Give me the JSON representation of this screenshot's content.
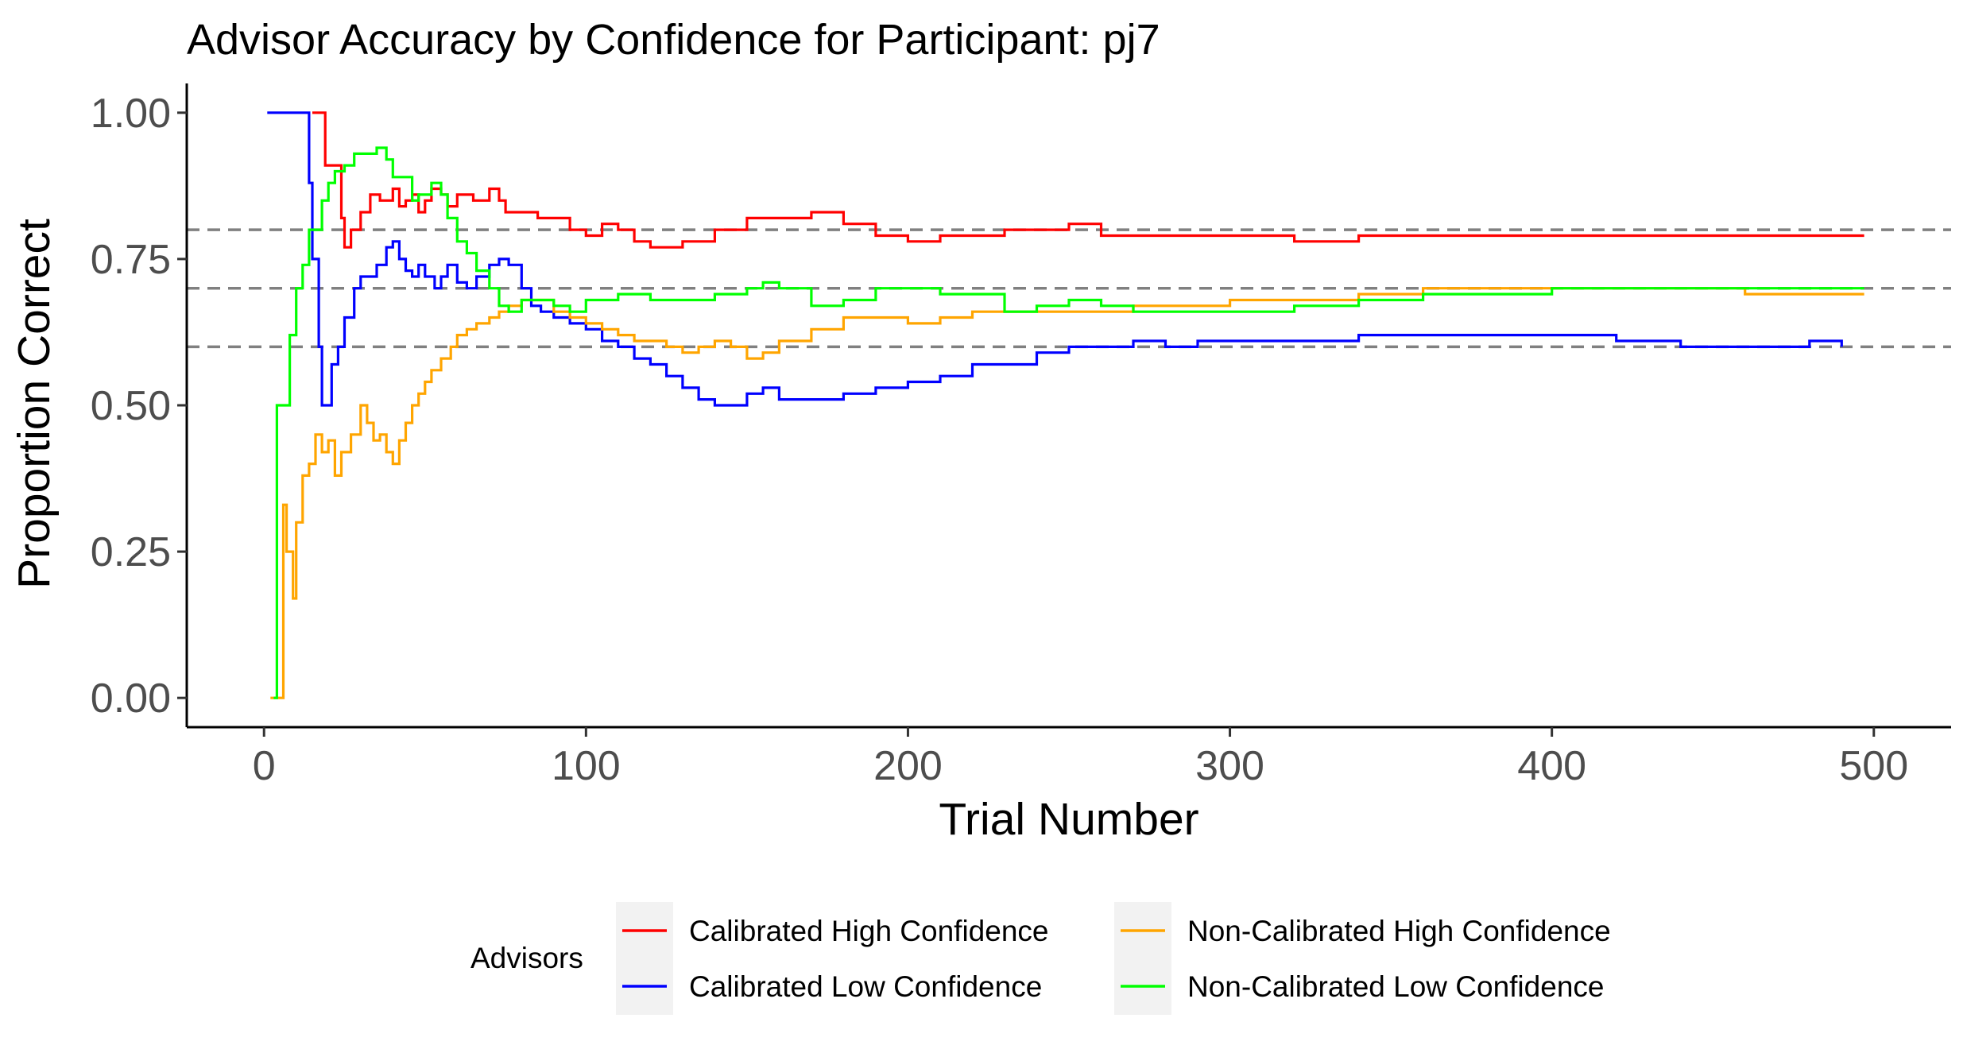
{
  "chart_data": {
    "type": "line",
    "step": true,
    "title": "Advisor Accuracy by Confidence for Participant: pj7",
    "xlabel": "Trial Number",
    "ylabel": "Proportion Correct",
    "xlim": [
      -24,
      524
    ],
    "ylim": [
      -0.05,
      1.05
    ],
    "x_ticks": [
      0,
      100,
      200,
      300,
      400,
      500
    ],
    "x_tick_labels": [
      "0",
      "100",
      "200",
      "300",
      "400",
      "500"
    ],
    "y_ticks": [
      0,
      0.25,
      0.5,
      0.75,
      1.0
    ],
    "y_tick_labels": [
      "0.00",
      "0.25",
      "0.50",
      "0.75",
      "1.00"
    ],
    "reference_lines": [
      0.8,
      0.7,
      0.6
    ],
    "reference_line_color": "#808080",
    "grid": false,
    "legend": {
      "title": "Advisors",
      "position": "bottom"
    },
    "series": [
      {
        "name": "Calibrated High Confidence",
        "color": "#ff0000",
        "points": [
          [
            15,
            1.0
          ],
          [
            18,
            1.0
          ],
          [
            19,
            0.91
          ],
          [
            23,
            0.91
          ],
          [
            24,
            0.82
          ],
          [
            25,
            0.77
          ],
          [
            27,
            0.8
          ],
          [
            30,
            0.83
          ],
          [
            33,
            0.86
          ],
          [
            36,
            0.85
          ],
          [
            40,
            0.87
          ],
          [
            42,
            0.84
          ],
          [
            44,
            0.85
          ],
          [
            46,
            0.86
          ],
          [
            48,
            0.83
          ],
          [
            50,
            0.85
          ],
          [
            52,
            0.87
          ],
          [
            55,
            0.86
          ],
          [
            57,
            0.84
          ],
          [
            60,
            0.86
          ],
          [
            65,
            0.85
          ],
          [
            70,
            0.87
          ],
          [
            73,
            0.85
          ],
          [
            75,
            0.83
          ],
          [
            80,
            0.83
          ],
          [
            85,
            0.82
          ],
          [
            90,
            0.82
          ],
          [
            95,
            0.8
          ],
          [
            100,
            0.79
          ],
          [
            105,
            0.81
          ],
          [
            110,
            0.8
          ],
          [
            115,
            0.78
          ],
          [
            120,
            0.77
          ],
          [
            130,
            0.78
          ],
          [
            140,
            0.8
          ],
          [
            150,
            0.82
          ],
          [
            160,
            0.82
          ],
          [
            170,
            0.83
          ],
          [
            180,
            0.81
          ],
          [
            190,
            0.79
          ],
          [
            200,
            0.78
          ],
          [
            210,
            0.79
          ],
          [
            220,
            0.79
          ],
          [
            230,
            0.8
          ],
          [
            240,
            0.8
          ],
          [
            250,
            0.81
          ],
          [
            260,
            0.79
          ],
          [
            280,
            0.79
          ],
          [
            300,
            0.79
          ],
          [
            320,
            0.78
          ],
          [
            340,
            0.79
          ],
          [
            360,
            0.79
          ],
          [
            380,
            0.79
          ],
          [
            400,
            0.79
          ],
          [
            420,
            0.79
          ],
          [
            440,
            0.79
          ],
          [
            460,
            0.79
          ],
          [
            480,
            0.79
          ],
          [
            497,
            0.79
          ]
        ]
      },
      {
        "name": "Calibrated Low Confidence",
        "color": "#0000ff",
        "points": [
          [
            1,
            1.0
          ],
          [
            13,
            1.0
          ],
          [
            14,
            0.88
          ],
          [
            15,
            0.75
          ],
          [
            17,
            0.6
          ],
          [
            18,
            0.5
          ],
          [
            20,
            0.5
          ],
          [
            21,
            0.57
          ],
          [
            23,
            0.6
          ],
          [
            25,
            0.65
          ],
          [
            28,
            0.7
          ],
          [
            30,
            0.72
          ],
          [
            33,
            0.72
          ],
          [
            35,
            0.74
          ],
          [
            38,
            0.77
          ],
          [
            40,
            0.78
          ],
          [
            42,
            0.75
          ],
          [
            44,
            0.73
          ],
          [
            46,
            0.72
          ],
          [
            48,
            0.74
          ],
          [
            50,
            0.72
          ],
          [
            53,
            0.7
          ],
          [
            55,
            0.72
          ],
          [
            57,
            0.74
          ],
          [
            60,
            0.71
          ],
          [
            63,
            0.7
          ],
          [
            66,
            0.72
          ],
          [
            70,
            0.74
          ],
          [
            73,
            0.75
          ],
          [
            76,
            0.74
          ],
          [
            80,
            0.7
          ],
          [
            83,
            0.67
          ],
          [
            86,
            0.66
          ],
          [
            90,
            0.65
          ],
          [
            95,
            0.64
          ],
          [
            100,
            0.63
          ],
          [
            105,
            0.61
          ],
          [
            110,
            0.6
          ],
          [
            115,
            0.58
          ],
          [
            120,
            0.57
          ],
          [
            125,
            0.55
          ],
          [
            130,
            0.53
          ],
          [
            135,
            0.51
          ],
          [
            140,
            0.5
          ],
          [
            145,
            0.5
          ],
          [
            150,
            0.52
          ],
          [
            155,
            0.53
          ],
          [
            160,
            0.51
          ],
          [
            170,
            0.51
          ],
          [
            180,
            0.52
          ],
          [
            190,
            0.53
          ],
          [
            200,
            0.54
          ],
          [
            210,
            0.55
          ],
          [
            220,
            0.57
          ],
          [
            230,
            0.57
          ],
          [
            240,
            0.59
          ],
          [
            250,
            0.6
          ],
          [
            260,
            0.6
          ],
          [
            270,
            0.61
          ],
          [
            280,
            0.6
          ],
          [
            290,
            0.61
          ],
          [
            300,
            0.61
          ],
          [
            320,
            0.61
          ],
          [
            340,
            0.62
          ],
          [
            360,
            0.62
          ],
          [
            380,
            0.62
          ],
          [
            400,
            0.62
          ],
          [
            420,
            0.61
          ],
          [
            440,
            0.6
          ],
          [
            460,
            0.6
          ],
          [
            480,
            0.61
          ],
          [
            490,
            0.6
          ]
        ]
      },
      {
        "name": "Non-Calibrated High Confidence",
        "color": "#ffa500",
        "points": [
          [
            2,
            0.0
          ],
          [
            5,
            0.0
          ],
          [
            6,
            0.33
          ],
          [
            7,
            0.25
          ],
          [
            8,
            0.25
          ],
          [
            9,
            0.17
          ],
          [
            10,
            0.3
          ],
          [
            12,
            0.38
          ],
          [
            14,
            0.4
          ],
          [
            16,
            0.45
          ],
          [
            18,
            0.42
          ],
          [
            20,
            0.44
          ],
          [
            22,
            0.38
          ],
          [
            24,
            0.42
          ],
          [
            27,
            0.45
          ],
          [
            30,
            0.5
          ],
          [
            32,
            0.47
          ],
          [
            34,
            0.44
          ],
          [
            36,
            0.45
          ],
          [
            38,
            0.42
          ],
          [
            40,
            0.4
          ],
          [
            42,
            0.44
          ],
          [
            44,
            0.47
          ],
          [
            46,
            0.5
          ],
          [
            48,
            0.52
          ],
          [
            50,
            0.54
          ],
          [
            52,
            0.56
          ],
          [
            55,
            0.58
          ],
          [
            58,
            0.6
          ],
          [
            60,
            0.62
          ],
          [
            63,
            0.63
          ],
          [
            66,
            0.64
          ],
          [
            70,
            0.65
          ],
          [
            73,
            0.66
          ],
          [
            76,
            0.67
          ],
          [
            80,
            0.68
          ],
          [
            85,
            0.68
          ],
          [
            90,
            0.66
          ],
          [
            95,
            0.65
          ],
          [
            100,
            0.64
          ],
          [
            105,
            0.63
          ],
          [
            110,
            0.62
          ],
          [
            115,
            0.61
          ],
          [
            120,
            0.61
          ],
          [
            125,
            0.6
          ],
          [
            130,
            0.59
          ],
          [
            135,
            0.6
          ],
          [
            140,
            0.61
          ],
          [
            145,
            0.6
          ],
          [
            150,
            0.58
          ],
          [
            155,
            0.59
          ],
          [
            160,
            0.61
          ],
          [
            170,
            0.63
          ],
          [
            180,
            0.65
          ],
          [
            190,
            0.65
          ],
          [
            200,
            0.64
          ],
          [
            210,
            0.65
          ],
          [
            220,
            0.66
          ],
          [
            230,
            0.66
          ],
          [
            240,
            0.66
          ],
          [
            250,
            0.66
          ],
          [
            260,
            0.66
          ],
          [
            270,
            0.67
          ],
          [
            280,
            0.67
          ],
          [
            290,
            0.67
          ],
          [
            300,
            0.68
          ],
          [
            320,
            0.68
          ],
          [
            340,
            0.69
          ],
          [
            360,
            0.7
          ],
          [
            380,
            0.7
          ],
          [
            400,
            0.7
          ],
          [
            420,
            0.7
          ],
          [
            440,
            0.7
          ],
          [
            460,
            0.69
          ],
          [
            480,
            0.69
          ],
          [
            497,
            0.69
          ]
        ]
      },
      {
        "name": "Non-Calibrated Low Confidence",
        "color": "#00ff00",
        "points": [
          [
            3,
            0.0
          ],
          [
            4,
            0.5
          ],
          [
            7,
            0.5
          ],
          [
            8,
            0.62
          ],
          [
            10,
            0.7
          ],
          [
            12,
            0.74
          ],
          [
            14,
            0.8
          ],
          [
            16,
            0.8
          ],
          [
            18,
            0.85
          ],
          [
            20,
            0.88
          ],
          [
            22,
            0.9
          ],
          [
            25,
            0.91
          ],
          [
            28,
            0.93
          ],
          [
            32,
            0.93
          ],
          [
            35,
            0.94
          ],
          [
            38,
            0.92
          ],
          [
            40,
            0.89
          ],
          [
            44,
            0.89
          ],
          [
            46,
            0.85
          ],
          [
            48,
            0.86
          ],
          [
            52,
            0.88
          ],
          [
            55,
            0.86
          ],
          [
            57,
            0.82
          ],
          [
            60,
            0.78
          ],
          [
            63,
            0.76
          ],
          [
            66,
            0.73
          ],
          [
            70,
            0.7
          ],
          [
            73,
            0.67
          ],
          [
            76,
            0.66
          ],
          [
            80,
            0.68
          ],
          [
            85,
            0.68
          ],
          [
            90,
            0.67
          ],
          [
            95,
            0.66
          ],
          [
            100,
            0.68
          ],
          [
            110,
            0.69
          ],
          [
            120,
            0.68
          ],
          [
            130,
            0.68
          ],
          [
            140,
            0.69
          ],
          [
            150,
            0.7
          ],
          [
            155,
            0.71
          ],
          [
            160,
            0.7
          ],
          [
            170,
            0.67
          ],
          [
            180,
            0.68
          ],
          [
            190,
            0.7
          ],
          [
            200,
            0.7
          ],
          [
            210,
            0.69
          ],
          [
            220,
            0.69
          ],
          [
            230,
            0.66
          ],
          [
            240,
            0.67
          ],
          [
            250,
            0.68
          ],
          [
            260,
            0.67
          ],
          [
            270,
            0.66
          ],
          [
            280,
            0.66
          ],
          [
            290,
            0.66
          ],
          [
            300,
            0.66
          ],
          [
            320,
            0.67
          ],
          [
            340,
            0.68
          ],
          [
            360,
            0.69
          ],
          [
            380,
            0.69
          ],
          [
            400,
            0.7
          ],
          [
            420,
            0.7
          ],
          [
            440,
            0.7
          ],
          [
            460,
            0.7
          ],
          [
            480,
            0.7
          ],
          [
            497,
            0.7
          ]
        ]
      }
    ]
  }
}
